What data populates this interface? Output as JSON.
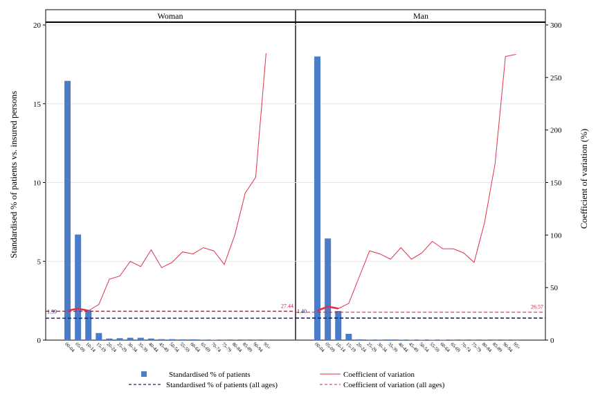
{
  "chart_data": {
    "type": "bar",
    "y_left": {
      "label": "Standardised % of patients vs. insured persons",
      "ticks": [
        "0",
        "5",
        "10",
        "15",
        "20"
      ],
      "range": [
        0,
        20
      ]
    },
    "y_right": {
      "label": "Coefficient of variation (%)",
      "ticks": [
        "0",
        "50",
        "100",
        "150",
        "200",
        "250",
        "300"
      ],
      "range": [
        0,
        300
      ]
    },
    "categories": [
      "00-04",
      "05-09",
      "10-14",
      "15-19",
      "20-24",
      "25-29",
      "30-34",
      "35-39",
      "40-44",
      "45-49",
      "50-54",
      "55-59",
      "60-64",
      "65-69",
      "70-74",
      "75-79",
      "80-84",
      "85-89",
      "90-94",
      "95+"
    ],
    "colors": {
      "bar": "#4a7cc7",
      "cv_line": "#e0304a",
      "cv_highlight": "#e0304a",
      "ref_patients": "#14237a",
      "ref_cv": "#c8203c"
    },
    "panels": [
      {
        "title": "Woman",
        "bars": [
          16.45,
          6.7,
          1.9,
          0.45,
          0.1,
          0.12,
          0.15,
          0.15,
          0.1,
          0.06,
          0.06,
          0.05,
          0.05,
          0.03,
          0.02,
          0.01,
          0.01,
          0.005,
          0.005,
          0.005
        ],
        "cv": [
          28,
          30,
          28,
          34,
          58,
          61,
          75,
          70,
          86,
          69,
          74,
          84,
          82,
          88,
          85,
          72,
          100,
          140,
          155,
          273
        ],
        "ref_patients": 1.39,
        "ref_patients_label": "1.39",
        "ref_cv": 27.44,
        "ref_cv_label": "27.44"
      },
      {
        "title": "Man",
        "bars": [
          18.0,
          6.45,
          1.85,
          0.4,
          0.05,
          0.03,
          0.03,
          0.04,
          0.03,
          0.02,
          0.02,
          0.02,
          0.02,
          0.01,
          0.01,
          0.01,
          0.01,
          0.005,
          0.005,
          0.005
        ],
        "cv": [
          28,
          32,
          30,
          35,
          60,
          85,
          82,
          77,
          88,
          77,
          83,
          94,
          87,
          87,
          83,
          74,
          112,
          168,
          270,
          272
        ],
        "ref_patients": 1.4,
        "ref_patients_label": "1.40",
        "ref_cv": 26.57,
        "ref_cv_label": "26.57"
      }
    ],
    "legend": {
      "bar": "Standardised % of patients",
      "cv": "Coefficient of variation",
      "ref_patients": "Standardised % of patients (all ages)",
      "ref_cv": "Coefficient of variation (all ages)"
    }
  }
}
